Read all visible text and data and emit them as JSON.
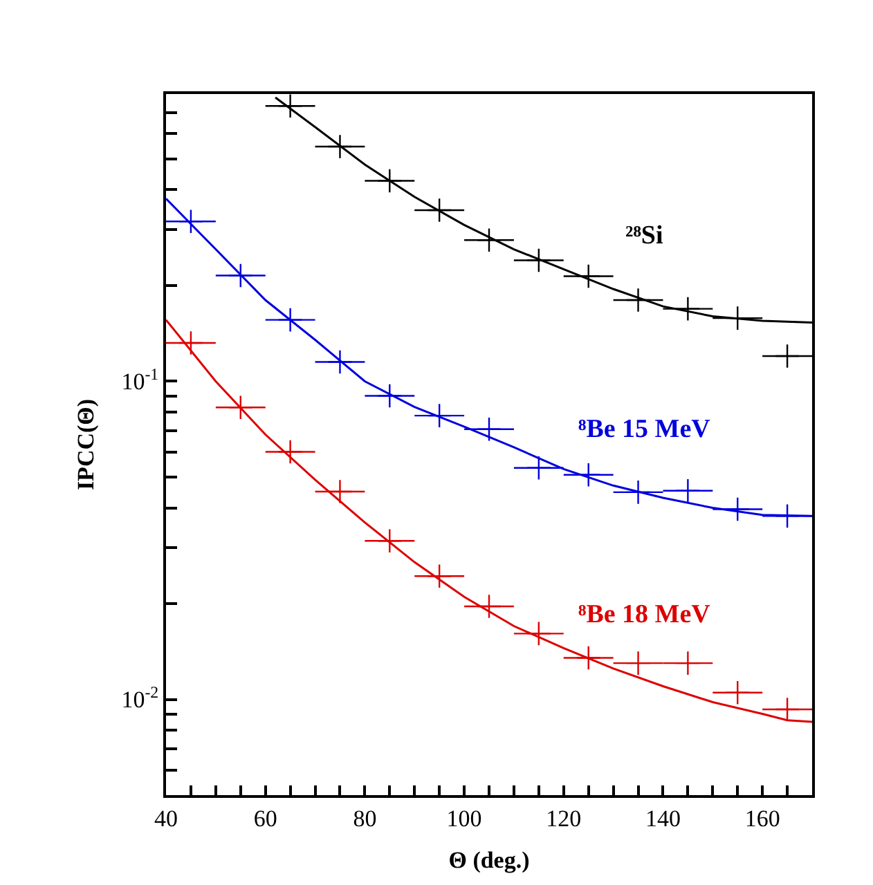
{
  "chart_data": {
    "type": "line",
    "xlabel": "Θ (deg.)",
    "ylabel": "IPCC(Θ)",
    "log": "y",
    "grid": false,
    "legend": false,
    "xlim": [
      40,
      170
    ],
    "ylim": [
      0.005,
      0.8
    ],
    "xticks": [
      40,
      {
        "value": 45,
        "label": null
      },
      {
        "value": 50,
        "label": null
      },
      {
        "value": 55,
        "label": null
      },
      60,
      {
        "value": 65,
        "label": null
      },
      {
        "value": 70,
        "label": null
      },
      {
        "value": 75,
        "label": null
      },
      80,
      {
        "value": 85,
        "label": null
      },
      {
        "value": 90,
        "label": null
      },
      {
        "value": 95,
        "label": null
      },
      100,
      {
        "value": 105,
        "label": null
      },
      {
        "value": 110,
        "label": null
      },
      {
        "value": 115,
        "label": null
      },
      120,
      {
        "value": 125,
        "label": null
      },
      {
        "value": 130,
        "label": null
      },
      {
        "value": 135,
        "label": null
      },
      140,
      {
        "value": 145,
        "label": null
      },
      {
        "value": 150,
        "label": null
      },
      {
        "value": 155,
        "label": null
      },
      160,
      {
        "value": 165,
        "label": null
      }
    ],
    "yticks": [
      {
        "value": 0.006,
        "label": null
      },
      {
        "value": 0.007,
        "label": null
      },
      {
        "value": 0.008,
        "label": null
      },
      {
        "value": 0.009,
        "label": null
      },
      {
        "value": 0.01,
        "label": "10$^{-2}$"
      },
      {
        "value": 0.02,
        "label": null
      },
      {
        "value": 0.03,
        "label": null
      },
      {
        "value": 0.04,
        "label": null
      },
      {
        "value": 0.05,
        "label": null
      },
      {
        "value": 0.06,
        "label": null
      },
      {
        "value": 0.07,
        "label": null
      },
      {
        "value": 0.08,
        "label": null
      },
      {
        "value": 0.09,
        "label": null
      },
      {
        "value": 0.1,
        "label": "10$^{-1}$"
      },
      {
        "value": 0.2,
        "label": null
      },
      {
        "value": 0.3,
        "label": null
      },
      {
        "value": 0.4,
        "label": null
      },
      {
        "value": 0.5,
        "label": null
      },
      {
        "value": 0.6,
        "label": null
      },
      {
        "value": 0.7,
        "label": null
      }
    ],
    "series": [
      {
        "name": "²⁸Si",
        "color": "#000000",
        "marker": "none",
        "x": [
          62,
          70,
          80,
          90,
          100,
          110,
          120,
          130,
          140,
          150,
          160,
          170
        ],
        "values": [
          0.78,
          0.63,
          0.48,
          0.38,
          0.31,
          0.26,
          0.225,
          0.195,
          0.172,
          0.16,
          0.155,
          0.153
        ]
      },
      {
        "name": "⁸Be 15 MeV",
        "color": "#0000dd",
        "marker": "none",
        "x": [
          40,
          50,
          60,
          70,
          80,
          90,
          100,
          110,
          120,
          130,
          140,
          150,
          160,
          170
        ],
        "values": [
          0.375,
          0.26,
          0.18,
          0.135,
          0.1,
          0.083,
          0.072,
          0.062,
          0.053,
          0.047,
          0.043,
          0.04,
          0.038,
          0.0377
        ]
      },
      {
        "name": "⁸Be 18 MeV",
        "color": "#dd0000",
        "marker": "none",
        "x": [
          40,
          50,
          60,
          70,
          80,
          90,
          100,
          110,
          120,
          130,
          140,
          150,
          160,
          165,
          170
        ],
        "values": [
          0.156,
          0.1,
          0.068,
          0.049,
          0.036,
          0.027,
          0.021,
          0.017,
          0.0145,
          0.0125,
          0.011,
          0.0098,
          0.009,
          0.0086,
          0.0085
        ]
      },
      {
        "type": "scatter",
        "color": "#000000",
        "marker": "cross",
        "x": [
          65,
          75,
          85,
          95,
          105,
          115,
          125,
          135,
          145,
          155,
          165
        ],
        "values": [
          0.734,
          0.547,
          0.427,
          0.345,
          0.278,
          0.24,
          0.214,
          0.18,
          0.169,
          0.158,
          0.12
        ],
        "xerrors": [
          5,
          5,
          5,
          5,
          5,
          5,
          5,
          5,
          5,
          5,
          5
        ]
      },
      {
        "type": "scatter",
        "color": "#0000dd",
        "marker": "cross",
        "x": [
          45,
          55,
          65,
          75,
          85,
          95,
          105,
          115,
          125,
          135,
          145,
          155,
          165
        ],
        "values": [
          0.318,
          0.215,
          0.156,
          0.115,
          0.09,
          0.078,
          0.0707,
          0.0534,
          0.0508,
          0.0448,
          0.0453,
          0.0396,
          0.0377
        ],
        "xerrors": [
          5,
          5,
          5,
          5,
          5,
          5,
          5,
          5,
          5,
          5,
          5,
          5,
          5
        ]
      },
      {
        "type": "scatter",
        "color": "#dd0000",
        "marker": "cross",
        "x": [
          45,
          55,
          65,
          75,
          85,
          95,
          105,
          115,
          125,
          135,
          145,
          155,
          165
        ],
        "values": [
          0.132,
          0.0828,
          0.06,
          0.045,
          0.0315,
          0.0244,
          0.0196,
          0.0161,
          0.0135,
          0.013,
          0.013,
          0.0105,
          0.0093
        ],
        "xerrors": [
          5,
          5,
          5,
          5,
          5,
          5,
          5,
          5,
          5,
          5,
          5,
          5,
          5
        ]
      }
    ]
  }
}
